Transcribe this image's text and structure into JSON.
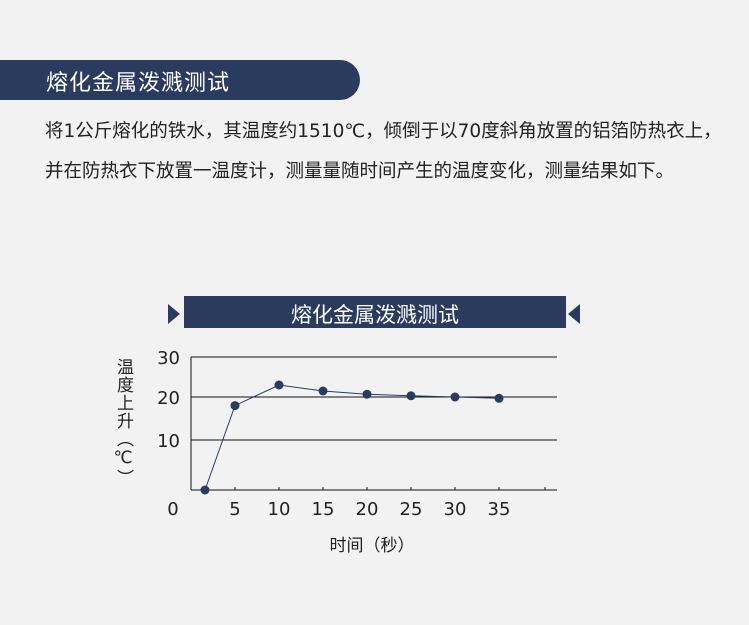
{
  "header": {
    "title": "熔化金属泼溅测试"
  },
  "description": "将1公斤熔化的铁水，其温度约1510℃，倾倒于以70度斜角放置的铝箔防热衣上，并在防热衣下放置一温度计，测量量随时间产生的温度变化，测量结果如下。",
  "colors": {
    "accent": "#2a3b5e",
    "background": "#f2f2f2"
  },
  "chart_data": {
    "type": "line",
    "title": "熔化金属泼溅测试",
    "xlabel": "时间（秒）",
    "ylabel": "温度上升（℃）",
    "x_ticks": [
      "0",
      "5",
      "10",
      "15",
      "20",
      "25",
      "30",
      "35"
    ],
    "y_ticks": [
      "10",
      "20",
      "30"
    ],
    "ylim": [
      0,
      30
    ],
    "grid": "horizontal",
    "x": [
      0,
      5,
      10,
      15,
      20,
      25,
      30,
      35
    ],
    "values": [
      0,
      18,
      23,
      21.5,
      20.7,
      20.3,
      20,
      19.7
    ]
  }
}
